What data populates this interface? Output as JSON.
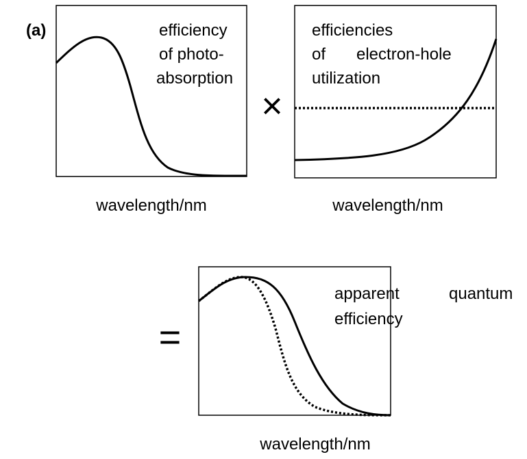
{
  "label": "(a)",
  "panels": [
    {
      "lines": [
        "efficiency",
        "of photo-",
        "absorption"
      ],
      "x_label": "wavelength/nm"
    },
    {
      "lines": [
        "efficiencies",
        "of",
        "electron-hole",
        "utilization"
      ],
      "x_label": "wavelength/nm"
    },
    {
      "lines": [
        "apparent",
        "quantum",
        "efficiency"
      ],
      "x_label": "wavelength/nm"
    }
  ],
  "operators": [
    "×",
    "="
  ]
}
